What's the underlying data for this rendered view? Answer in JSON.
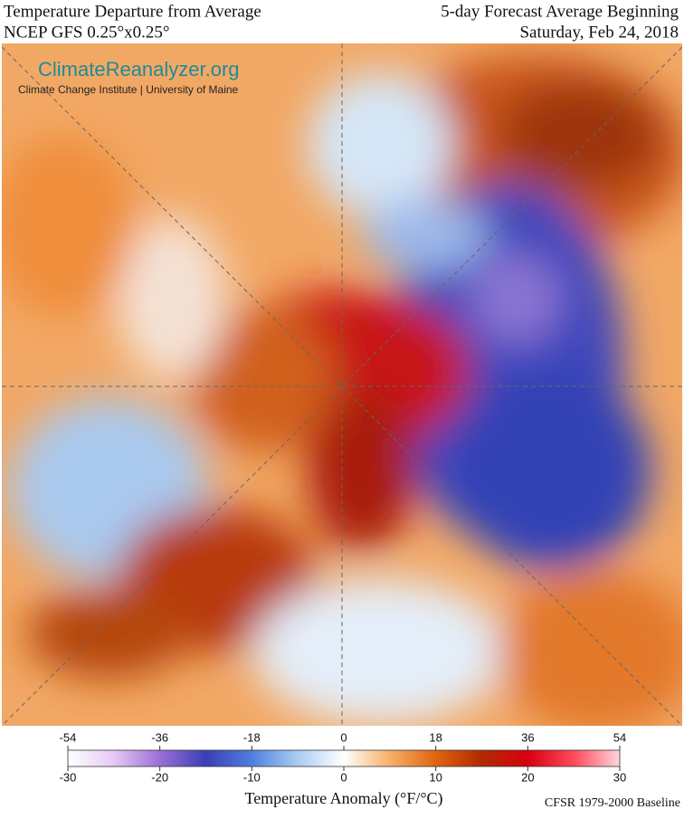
{
  "header": {
    "title_left": "Temperature Departure from Average",
    "subtitle_left": "NCEP GFS 0.25°x0.25°",
    "title_right": "5-day Forecast Average Beginning",
    "subtitle_right": "Saturday, Feb 24, 2018"
  },
  "logo": {
    "name": "ClimateReanalyzer.org",
    "institution": "Climate Change Institute | University of Maine"
  },
  "colorbar": {
    "f_lim": [
      -54,
      54
    ],
    "f_ticks": [
      -54,
      -36,
      -18,
      0,
      18,
      36,
      54
    ],
    "c_lim": [
      -30,
      30
    ],
    "c_ticks": [
      -30,
      -20,
      -10,
      0,
      10,
      20,
      30
    ],
    "colors": [
      "#ffffff",
      "#e6c8f5",
      "#9a6fd6",
      "#3a3fb5",
      "#4f7fe0",
      "#a9cdf2",
      "#ffffff",
      "#f7b067",
      "#e0640f",
      "#b02a00",
      "#d70010",
      "#ff4a5a",
      "#ffd6dc"
    ],
    "label": "Temperature Anomaly (°F/°C)",
    "baseline": "CFSR 1979-2000 Baseline"
  }
}
